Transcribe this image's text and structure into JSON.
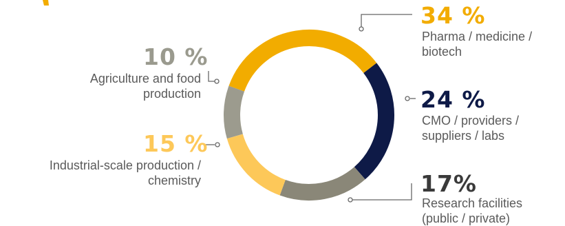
{
  "chart_data": {
    "type": "pie",
    "style": "donut",
    "segments": [
      {
        "value_label": "34 %",
        "value": 34,
        "label": "Pharma / medicine / biotech",
        "color": "#f2ac00"
      },
      {
        "value_label": "24 %",
        "value": 24,
        "label": "CMO / providers / suppliers / labs",
        "color": "#0e1a47"
      },
      {
        "value_label": "17%",
        "value": 17,
        "label": "Research facilities (public / private)",
        "color": "#8a8778"
      },
      {
        "value_label": "15 %",
        "value": 15,
        "label": "Industrial-scale production / chemistry",
        "color": "#fdc859"
      },
      {
        "value_label": "10 %",
        "value": 10,
        "label": "Agriculture and food production",
        "color": "#9c9b8e"
      }
    ],
    "value_label_colors": {
      "pharma": "#f2ac00",
      "cmo": "#0e1a47",
      "research": "#3a3a3a",
      "industrial": "#fdc859",
      "agriculture": "#9a9a8e"
    },
    "leader_color": "#666666"
  }
}
